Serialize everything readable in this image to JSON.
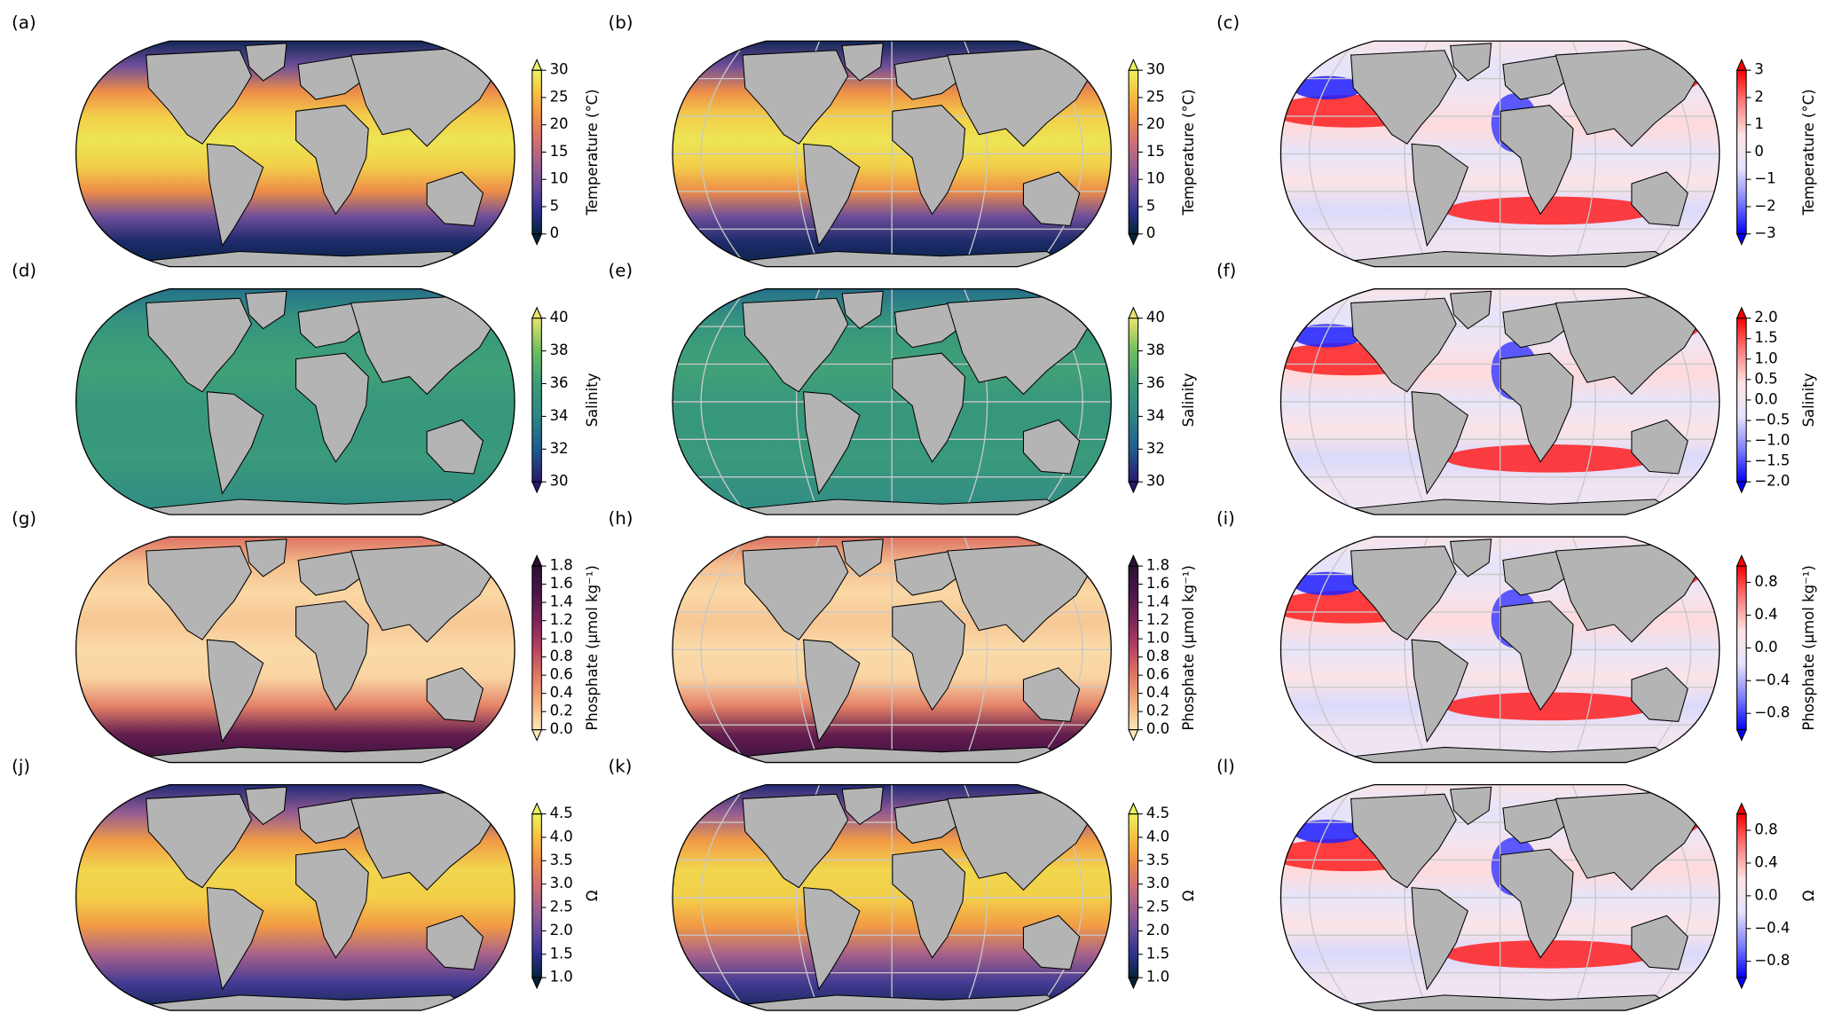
{
  "panels": [
    {
      "label": "(a)",
      "colorbar": {
        "label": "Temperature (°C)",
        "lim": [
          0,
          30
        ],
        "ticks": [
          0,
          5,
          10,
          15,
          20,
          25,
          30
        ],
        "colors": [
          "#04233a",
          "#2e2f8f",
          "#6a4c9c",
          "#a0608f",
          "#d5706f",
          "#f08f45",
          "#f7c040",
          "#e9f35f"
        ]
      }
    },
    {
      "label": "(b)",
      "colorbar": {
        "label": "Temperature (°C)",
        "lim": [
          0,
          30
        ],
        "ticks": [
          0,
          5,
          10,
          15,
          20,
          25,
          30
        ],
        "colors": [
          "#04233a",
          "#2e2f8f",
          "#6a4c9c",
          "#a0608f",
          "#d5706f",
          "#f08f45",
          "#f7c040",
          "#e9f35f"
        ]
      }
    },
    {
      "label": "(c)",
      "colorbar": {
        "label": "Temperature (°C)",
        "lim": [
          -3,
          3
        ],
        "ticks": [
          {
            "value": -3,
            "label": "−3"
          },
          {
            "value": -2,
            "label": "−2"
          },
          {
            "value": -1,
            "label": "−1"
          },
          0,
          1,
          2,
          3
        ],
        "colors": [
          "#0000ff",
          "#8080ff",
          "#e4e4fb",
          "#ffe4e4",
          "#ff8080",
          "#ff0000"
        ]
      }
    },
    {
      "label": "(d)",
      "colorbar": {
        "label": "Salinity",
        "lim": [
          30,
          40
        ],
        "ticks": [
          30,
          32,
          34,
          36,
          38,
          40
        ],
        "colors": [
          "#2a186c",
          "#1f5c8f",
          "#2c8687",
          "#3b9c7a",
          "#6cbf5e",
          "#e8e36c"
        ]
      }
    },
    {
      "label": "(e)",
      "colorbar": {
        "label": "Salinity",
        "lim": [
          30,
          40
        ],
        "ticks": [
          30,
          32,
          34,
          36,
          38,
          40
        ],
        "colors": [
          "#2a186c",
          "#1f5c8f",
          "#2c8687",
          "#3b9c7a",
          "#6cbf5e",
          "#e8e36c"
        ]
      }
    },
    {
      "label": "(f)",
      "colorbar": {
        "label": "Salinity",
        "lim": [
          -2,
          2
        ],
        "ticks": [
          {
            "value": -2,
            "label": "−2.0"
          },
          {
            "value": -1.5,
            "label": "−1.5"
          },
          {
            "value": -1,
            "label": "−1.0"
          },
          {
            "value": -0.5,
            "label": "−0.5"
          },
          {
            "value": 0,
            "label": "0.0"
          },
          0.5,
          {
            "value": 1,
            "label": "1.0"
          },
          1.5,
          {
            "value": 2,
            "label": "2.0"
          }
        ],
        "colors": [
          "#0000ff",
          "#8080ff",
          "#e4e4fb",
          "#ffe4e4",
          "#ff8080",
          "#ff0000"
        ]
      }
    },
    {
      "label": "(g)",
      "colorbar": {
        "label": "Phosphate (μmol kg⁻¹)",
        "lim": [
          0,
          1.8
        ],
        "ticks": [
          {
            "value": 0,
            "label": "0.0"
          },
          0.2,
          0.4,
          0.6,
          0.8,
          {
            "value": 1,
            "label": "1.0"
          },
          1.2,
          1.4,
          1.6,
          1.8
        ],
        "colors": [
          "#fde9b6",
          "#f3b07e",
          "#e07763",
          "#b74162",
          "#7e2459",
          "#4a1647",
          "#2a0f33"
        ]
      }
    },
    {
      "label": "(h)",
      "colorbar": {
        "label": "Phosphate (μmol kg⁻¹)",
        "lim": [
          0,
          1.8
        ],
        "ticks": [
          {
            "value": 0,
            "label": "0.0"
          },
          0.2,
          0.4,
          0.6,
          0.8,
          {
            "value": 1,
            "label": "1.0"
          },
          1.2,
          1.4,
          1.6,
          1.8
        ],
        "colors": [
          "#fde9b6",
          "#f3b07e",
          "#e07763",
          "#b74162",
          "#7e2459",
          "#4a1647",
          "#2a0f33"
        ]
      }
    },
    {
      "label": "(i)",
      "colorbar": {
        "label": "Phosphate (μmol kg⁻¹)",
        "lim": [
          -1,
          1
        ],
        "ticks": [
          {
            "value": -0.8,
            "label": "−0.8"
          },
          {
            "value": -0.4,
            "label": "−0.4"
          },
          {
            "value": 0,
            "label": "0.0"
          },
          0.4,
          0.8
        ],
        "colors": [
          "#0000ff",
          "#8080ff",
          "#e4e4fb",
          "#ffe4e4",
          "#ff8080",
          "#ff0000"
        ]
      }
    },
    {
      "label": "(j)",
      "colorbar": {
        "label": "Ω",
        "lim": [
          1,
          4.5
        ],
        "ticks": [
          {
            "value": 1,
            "label": "1.0"
          },
          1.5,
          {
            "value": 2,
            "label": "2.0"
          },
          2.5,
          {
            "value": 3,
            "label": "3.0"
          },
          3.5,
          {
            "value": 4,
            "label": "4.0"
          },
          4.5
        ],
        "colors": [
          "#04233a",
          "#2e2f8f",
          "#6a4c9c",
          "#a0608f",
          "#d5706f",
          "#f08f45",
          "#f7c040",
          "#e9f35f"
        ]
      }
    },
    {
      "label": "(k)",
      "colorbar": {
        "label": "Ω",
        "lim": [
          1,
          4.5
        ],
        "ticks": [
          {
            "value": 1,
            "label": "1.0"
          },
          1.5,
          {
            "value": 2,
            "label": "2.0"
          },
          2.5,
          {
            "value": 3,
            "label": "3.0"
          },
          3.5,
          {
            "value": 4,
            "label": "4.0"
          },
          4.5
        ],
        "colors": [
          "#04233a",
          "#2e2f8f",
          "#6a4c9c",
          "#a0608f",
          "#d5706f",
          "#f08f45",
          "#f7c040",
          "#e9f35f"
        ]
      }
    },
    {
      "label": "(l)",
      "colorbar": {
        "label": "Ω",
        "lim": [
          -1,
          1
        ],
        "ticks": [
          {
            "value": -0.8,
            "label": "−0.8"
          },
          {
            "value": -0.4,
            "label": "−0.4"
          },
          {
            "value": 0,
            "label": "0.0"
          },
          0.4,
          0.8
        ],
        "colors": [
          "#0000ff",
          "#8080ff",
          "#e4e4fb",
          "#ffe4e4",
          "#ff8080",
          "#ff0000"
        ]
      }
    }
  ]
}
